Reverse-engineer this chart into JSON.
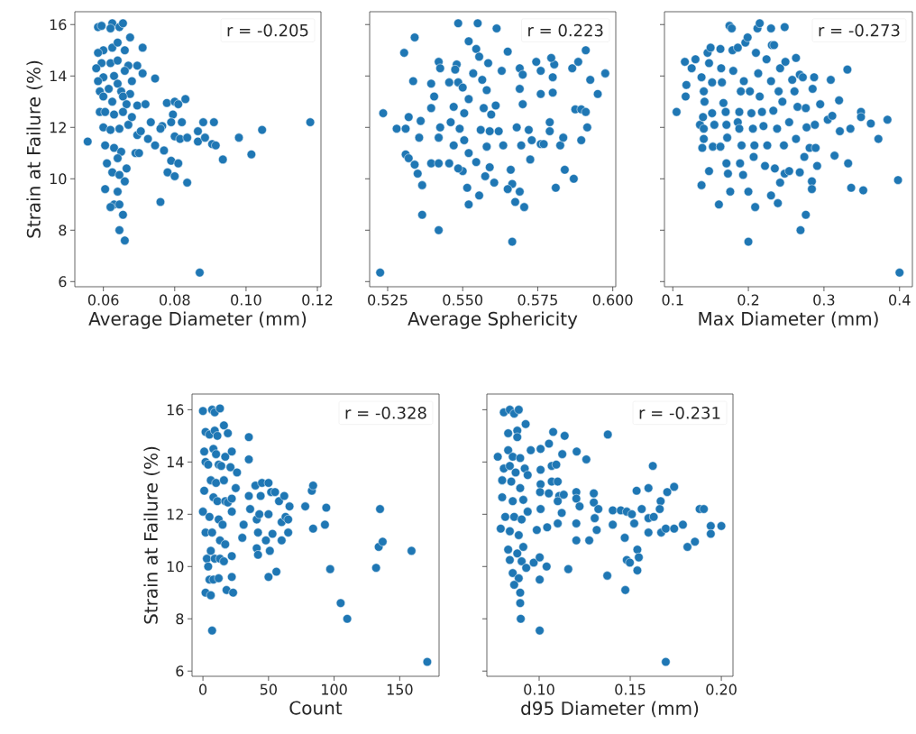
{
  "chart_data": [
    {
      "type": "scatter",
      "xlabel": "Average Diameter (mm)",
      "ylabel": "Strain at Failure (%)",
      "color": "#1f77b4",
      "xlim": [
        0.052,
        0.121
      ],
      "ylim": [
        5.8,
        16.5
      ],
      "xticks": [
        0.06,
        0.08,
        {
          "value": 0.1,
          "label": "0.10"
        },
        0.12
      ],
      "yticks": [
        6,
        8,
        10,
        12,
        14,
        16
      ],
      "annotations": [
        "r = -0.205"
      ],
      "x": [
        0.0556,
        0.0585,
        0.0595,
        0.0625,
        0.0645,
        0.0655,
        0.062,
        0.0675,
        0.071,
        0.06,
        0.0625,
        0.064,
        0.066,
        0.0585,
        0.0595,
        0.062,
        0.064,
        0.067,
        0.0695,
        0.071,
        0.058,
        0.06,
        0.063,
        0.066,
        0.068,
        0.0745,
        0.0585,
        0.059,
        0.0615,
        0.064,
        0.065,
        0.0675,
        0.06,
        0.0625,
        0.0655,
        0.0665,
        0.0695,
        0.0718,
        0.059,
        0.0605,
        0.063,
        0.0655,
        0.068,
        0.0778,
        0.08,
        0.083,
        0.081,
        0.0795,
        0.0733,
        0.0765,
        0.079,
        0.082,
        0.088,
        0.091,
        0.118,
        0.06,
        0.062,
        0.0645,
        0.067,
        0.0695,
        0.0705,
        0.076,
        0.08,
        0.0815,
        0.0835,
        0.0865,
        0.0865,
        0.0885,
        0.0905,
        0.0915,
        0.098,
        0.1045,
        0.0725,
        0.0745,
        0.077,
        0.0605,
        0.063,
        0.065,
        0.069,
        0.07,
        0.1015,
        0.0935,
        0.064,
        0.061,
        0.0665,
        0.079,
        0.081,
        0.078,
        0.08,
        0.0625,
        0.0645,
        0.066,
        0.0835,
        0.0605,
        0.064,
        0.063,
        0.0645,
        0.062,
        0.076,
        0.0655,
        0.0645,
        0.066,
        0.087
      ],
      "values": [
        11.45,
        15.9,
        15.95,
        16.05,
        15.9,
        16.05,
        15.85,
        15.5,
        15.1,
        15.0,
        15.1,
        15.3,
        15.0,
        14.9,
        14.5,
        14.5,
        14.6,
        14.4,
        14.4,
        14.1,
        14.3,
        13.95,
        14.0,
        14.2,
        13.8,
        13.9,
        13.8,
        13.4,
        13.5,
        13.7,
        13.4,
        13.3,
        13.2,
        13.0,
        13.2,
        12.9,
        12.85,
        12.9,
        12.6,
        12.6,
        12.5,
        12.6,
        12.4,
        12.95,
        13.0,
        13.1,
        12.9,
        12.5,
        12.2,
        12.05,
        12.2,
        12.2,
        12.2,
        12.2,
        12.2,
        12.0,
        11.9,
        11.95,
        12.1,
        11.7,
        11.85,
        11.95,
        11.65,
        11.55,
        11.6,
        11.85,
        11.45,
        11.6,
        11.35,
        11.3,
        11.6,
        11.9,
        11.55,
        11.3,
        11.1,
        11.3,
        11.2,
        11.05,
        11.0,
        11.0,
        10.95,
        10.75,
        10.8,
        10.6,
        10.4,
        10.7,
        10.6,
        10.25,
        10.1,
        10.25,
        10.15,
        9.9,
        9.85,
        9.6,
        9.5,
        9.0,
        9.0,
        8.9,
        9.1,
        8.6,
        8.0,
        7.6,
        6.35
      ]
    },
    {
      "type": "scatter",
      "xlabel": "Average Sphericity",
      "color": "#1f77b4",
      "xlim": [
        0.519,
        0.601
      ],
      "ylim": [
        5.8,
        16.5
      ],
      "xticks": [
        0.525,
        {
          "value": 0.55,
          "label": "0.550"
        },
        0.575,
        {
          "value": 0.6,
          "label": "0.600"
        }
      ],
      "yticks": [
        6,
        8,
        10,
        12,
        14,
        16
      ],
      "tick_labels": "x",
      "annotations": [
        "r = 0.223"
      ],
      "x": [
        0.5225,
        0.5235,
        0.528,
        0.5305,
        0.534,
        0.5335,
        0.532,
        0.531,
        0.531,
        0.532,
        0.534,
        0.535,
        0.5365,
        0.5365,
        0.542,
        0.5355,
        0.536,
        0.5395,
        0.542,
        0.5425,
        0.5405,
        0.5395,
        0.5425,
        0.542,
        0.5395,
        0.542,
        0.5455,
        0.547,
        0.546,
        0.547,
        0.5485,
        0.5455,
        0.548,
        0.5475,
        0.5485,
        0.555,
        0.552,
        0.5545,
        0.5555,
        0.5535,
        0.55,
        0.552,
        0.5505,
        0.549,
        0.5505,
        0.552,
        0.55,
        0.5485,
        0.5515,
        0.552,
        0.5555,
        0.5545,
        0.556,
        0.557,
        0.5565,
        0.5585,
        0.558,
        0.5595,
        0.559,
        0.558,
        0.559,
        0.5575,
        0.5605,
        0.561,
        0.563,
        0.565,
        0.5613,
        0.562,
        0.5635,
        0.566,
        0.5665,
        0.565,
        0.569,
        0.5675,
        0.5705,
        0.5665,
        0.568,
        0.5695,
        0.57,
        0.569,
        0.569,
        0.57,
        0.572,
        0.573,
        0.5725,
        0.576,
        0.5745,
        0.576,
        0.576,
        0.577,
        0.579,
        0.579,
        0.58,
        0.58,
        0.5805,
        0.5795,
        0.581,
        0.5825,
        0.5835,
        0.584,
        0.587,
        0.5865,
        0.5885,
        0.5875,
        0.5895,
        0.591,
        0.5895,
        0.5915,
        0.5925,
        0.595,
        0.5975,
        0.591
      ],
      "values": [
        6.35,
        12.55,
        11.95,
        14.9,
        15.5,
        13.8,
        12.4,
        11.95,
        10.95,
        10.8,
        10.55,
        10.2,
        9.75,
        8.6,
        8.0,
        11.6,
        12.25,
        13.7,
        14.55,
        14.3,
        13.2,
        12.75,
        12.0,
        11.6,
        10.6,
        10.6,
        10.6,
        11.3,
        12.2,
        12.8,
        13.75,
        13.75,
        14.45,
        14.25,
        16.05,
        16.05,
        15.35,
        15.05,
        14.75,
        14.1,
        13.55,
        13.1,
        12.55,
        11.95,
        11.5,
        11.0,
        10.3,
        10.4,
        9.65,
        9.0,
        9.35,
        10.65,
        11.9,
        12.75,
        13.85,
        14.5,
        13.45,
        12.5,
        11.85,
        11.25,
        10.45,
        10.1,
        9.85,
        12.85,
        14.2,
        14.95,
        15.85,
        11.85,
        11.3,
        10.35,
        9.8,
        9.6,
        9.5,
        9.1,
        8.9,
        7.55,
        12.0,
        11.3,
        12.9,
        13.5,
        14.3,
        14.05,
        11.9,
        11.5,
        10.75,
        13.3,
        14.55,
        14.2,
        11.35,
        11.35,
        11.85,
        12.2,
        13.35,
        13.95,
        14.45,
        14.7,
        9.65,
        11.3,
        11.6,
        10.35,
        10.0,
        14.3,
        14.55,
        12.7,
        12.7,
        12.6,
        11.5,
        12.0,
        13.85,
        13.3,
        14.1,
        15.0
      ]
    },
    {
      "type": "scatter",
      "xlabel": "Max Diameter (mm)",
      "color": "#1f77b4",
      "xlim": [
        0.089,
        0.417
      ],
      "ylim": [
        5.8,
        16.5
      ],
      "xticks": [
        0.1,
        0.2,
        0.3,
        0.4
      ],
      "yticks": [
        6,
        8,
        10,
        12,
        14,
        16
      ],
      "tick_labels": "x",
      "annotations": [
        "r = -0.273"
      ],
      "x": [
        0.105,
        0.117,
        0.118,
        0.116,
        0.125,
        0.13,
        0.136,
        0.138,
        0.141,
        0.142,
        0.14,
        0.141,
        0.141,
        0.139,
        0.138,
        0.148,
        0.146,
        0.15,
        0.148,
        0.152,
        0.152,
        0.155,
        0.153,
        0.161,
        0.163,
        0.163,
        0.164,
        0.165,
        0.167,
        0.17,
        0.171,
        0.171,
        0.172,
        0.173,
        0.176,
        0.175,
        0.178,
        0.179,
        0.18,
        0.186,
        0.19,
        0.188,
        0.186,
        0.188,
        0.191,
        0.189,
        0.193,
        0.194,
        0.196,
        0.199,
        0.2,
        0.2,
        0.202,
        0.204,
        0.206,
        0.208,
        0.207,
        0.21,
        0.212,
        0.215,
        0.209,
        0.213,
        0.215,
        0.218,
        0.22,
        0.222,
        0.224,
        0.225,
        0.23,
        0.23,
        0.231,
        0.23,
        0.234,
        0.233,
        0.235,
        0.239,
        0.238,
        0.24,
        0.242,
        0.245,
        0.248,
        0.249,
        0.247,
        0.248,
        0.242,
        0.254,
        0.254,
        0.258,
        0.263,
        0.261,
        0.265,
        0.263,
        0.268,
        0.268,
        0.272,
        0.269,
        0.276,
        0.274,
        0.277,
        0.276,
        0.281,
        0.284,
        0.284,
        0.285,
        0.287,
        0.288,
        0.289,
        0.291,
        0.295,
        0.305,
        0.309,
        0.311,
        0.314,
        0.32,
        0.321,
        0.331,
        0.332,
        0.335,
        0.336,
        0.349,
        0.349,
        0.352,
        0.362,
        0.372,
        0.384,
        0.398,
        0.4
      ],
      "values": [
        12.6,
        13.2,
        13.65,
        14.55,
        14.3,
        14.65,
        12.1,
        13.95,
        13.4,
        13.0,
        12.4,
        11.95,
        11.55,
        11.2,
        9.75,
        10.3,
        14.9,
        15.1,
        14.5,
        13.75,
        12.55,
        12.1,
        11.25,
        9.0,
        11.25,
        15.05,
        14.3,
        13.75,
        12.95,
        12.6,
        12.1,
        10.6,
        11.6,
        10.2,
        9.5,
        15.95,
        15.85,
        15.0,
        14.2,
        15.1,
        13.4,
        12.6,
        12.2,
        11.95,
        11.3,
        10.6,
        10.15,
        13.8,
        15.3,
        15.5,
        9.5,
        7.55,
        13.4,
        12.55,
        11.95,
        11.3,
        10.85,
        14.9,
        15.85,
        16.05,
        8.9,
        14.1,
        13.2,
        12.6,
        12.05,
        10.5,
        14.65,
        11.3,
        9.35,
        13.8,
        15.2,
        15.85,
        15.2,
        12.65,
        10.4,
        9.05,
        11.95,
        13.4,
        14.3,
        13.0,
        15.9,
        14.55,
        11.3,
        10.2,
        9.85,
        10.3,
        12.2,
        13.85,
        14.7,
        13.4,
        12.8,
        11.55,
        10.25,
        14.05,
        13.95,
        8.0,
        8.6,
        10.85,
        12.0,
        12.75,
        11.2,
        9.9,
        9.6,
        13.5,
        13.95,
        12.1,
        11.2,
        10.5,
        12.9,
        12.3,
        13.85,
        12.45,
        10.9,
        13.05,
        11.85,
        14.25,
        10.6,
        11.95,
        9.65,
        12.6,
        12.4,
        9.55,
        12.15,
        11.55,
        12.3,
        9.95,
        6.35
      ]
    },
    {
      "type": "scatter",
      "xlabel": "Count",
      "ylabel": "Strain at Failure (%)",
      "color": "#1f77b4",
      "xlim": [
        -8.3,
        180
      ],
      "ylim": [
        5.8,
        16.6
      ],
      "xticks": [
        0,
        50,
        100,
        150
      ],
      "yticks": [
        6,
        8,
        10,
        12,
        14,
        16
      ],
      "annotations": [
        "r = -0.328"
      ],
      "x": [
        0,
        2,
        1,
        2,
        1,
        0,
        2,
        3,
        2,
        7,
        6,
        5,
        8,
        4,
        6,
        9,
        7,
        5,
        8,
        6,
        4,
        8,
        5,
        9,
        7,
        9,
        13,
        11,
        10,
        12,
        10,
        11,
        12,
        13,
        13,
        12,
        16,
        17,
        15,
        17,
        16,
        14,
        17,
        16,
        19,
        19,
        18,
        23,
        22,
        22,
        22,
        22,
        21,
        22,
        26,
        25,
        31,
        30,
        35,
        35,
        35,
        36,
        40,
        41,
        42,
        41,
        42,
        43,
        45,
        44,
        48,
        50,
        52,
        50,
        53,
        51,
        50,
        55,
        56,
        58,
        60,
        62,
        60,
        63,
        65,
        66,
        65,
        78,
        83,
        84,
        84,
        94,
        93,
        97,
        105,
        110,
        132,
        135,
        134,
        137,
        159,
        171
      ],
      "values": [
        15.95,
        15.15,
        14.4,
        14.0,
        12.9,
        12.1,
        11.3,
        10.3,
        9.0,
        7.55,
        8.9,
        9.5,
        9.5,
        10.0,
        10.6,
        10.3,
        11.3,
        11.9,
        12.65,
        13.3,
        13.9,
        14.5,
        15.05,
        15.2,
        16.0,
        15.9,
        16.05,
        15.0,
        14.3,
        13.9,
        13.2,
        12.5,
        11.8,
        11.0,
        10.3,
        9.55,
        10.2,
        10.85,
        11.6,
        12.5,
        13.3,
        13.85,
        14.2,
        15.4,
        15.1,
        12.45,
        9.1,
        9.0,
        9.6,
        10.4,
        12.1,
        12.6,
        13.8,
        14.4,
        13.6,
        13.0,
        11.6,
        11.1,
        14.95,
        14.1,
        12.7,
        12.2,
        13.1,
        11.8,
        11.3,
        10.7,
        10.45,
        12.0,
        13.2,
        12.7,
        11.0,
        13.2,
        12.85,
        12.0,
        11.25,
        10.6,
        9.6,
        12.85,
        9.8,
        12.5,
        11.7,
        12.7,
        11.0,
        11.9,
        11.3,
        12.3,
        11.8,
        12.3,
        12.9,
        13.1,
        11.45,
        12.25,
        11.6,
        9.9,
        8.6,
        8.0,
        9.95,
        12.2,
        10.75,
        10.95,
        10.6,
        6.35
      ]
    },
    {
      "type": "scatter",
      "xlabel": "d95 Diameter (mm)",
      "color": "#1f77b4",
      "xlim": [
        0.0713,
        0.2064
      ],
      "ylim": [
        5.8,
        16.6
      ],
      "xticks": [
        {
          "value": 0.1,
          "label": "0.10"
        },
        0.15,
        {
          "value": 0.2,
          "label": "0.20"
        }
      ],
      "yticks": [
        6,
        8,
        10,
        12,
        14,
        16
      ],
      "tick_labels": "x",
      "annotations": [
        "r = -0.231"
      ],
      "x": [
        0.0773,
        0.0806,
        0.0839,
        0.0863,
        0.0888,
        0.0926,
        0.083,
        0.088,
        0.088,
        0.083,
        0.0855,
        0.0896,
        0.0806,
        0.0839,
        0.0871,
        0.0921,
        0.0937,
        0.0797,
        0.0847,
        0.0896,
        0.0797,
        0.0855,
        0.0913,
        0.0937,
        0.0814,
        0.0863,
        0.0904,
        0.0789,
        0.0839,
        0.0888,
        0.083,
        0.088,
        0.0913,
        0.0839,
        0.0904,
        0.0855,
        0.0888,
        0.0863,
        0.0896,
        0.0896,
        0.0899,
        0.1003,
        0.0929,
        0.097,
        0.1003,
        0.1003,
        0.1041,
        0.0954,
        0.1008,
        0.1008,
        0.1054,
        0.1077,
        0.114,
        0.1069,
        0.1094,
        0.1127,
        0.1069,
        0.1102,
        0.1008,
        0.1005,
        0.1053,
        0.111,
        0.1135,
        0.1008,
        0.1102,
        0.1124,
        0.0987,
        0.1044,
        0.1102,
        0.116,
        0.1206,
        0.1259,
        0.1204,
        0.1204,
        0.1222,
        0.1204,
        0.1204,
        0.1275,
        0.13,
        0.13,
        0.1325,
        0.1305,
        0.1316,
        0.1377,
        0.1374,
        0.1404,
        0.1404,
        0.1448,
        0.1481,
        0.1509,
        0.1522,
        0.147,
        0.1481,
        0.1498,
        0.1539,
        0.1547,
        0.1539,
        0.1473,
        0.1535,
        0.1563,
        0.16,
        0.16,
        0.16,
        0.1624,
        0.1629,
        0.1667,
        0.1662,
        0.167,
        0.1695,
        0.1703,
        0.1741,
        0.1741,
        0.1789,
        0.1814,
        0.1855,
        0.1881,
        0.1904,
        0.1942,
        0.1942,
        0.2,
        0.1695
      ],
      "values": [
        14.2,
        15.9,
        16.0,
        15.85,
        16.0,
        15.45,
        15.1,
        15.2,
        14.95,
        14.45,
        14.2,
        14.15,
        13.75,
        13.85,
        13.6,
        13.75,
        13.5,
        13.3,
        13.25,
        13.0,
        12.65,
        12.5,
        12.55,
        12.1,
        11.9,
        11.9,
        11.8,
        11.45,
        11.35,
        11.2,
        10.65,
        10.5,
        10.75,
        10.25,
        10.2,
        9.75,
        9.55,
        9.3,
        9.0,
        8.6,
        8.0,
        7.55,
        9.95,
        10.15,
        10.35,
        9.5,
        10.0,
        14.45,
        14.5,
        13.7,
        14.7,
        15.15,
        15.0,
        13.85,
        13.9,
        14.3,
        13.25,
        13.25,
        13.15,
        12.85,
        12.8,
        12.7,
        12.75,
        12.2,
        12.5,
        12.05,
        11.4,
        11.5,
        11.65,
        9.9,
        14.4,
        14.1,
        12.85,
        12.6,
        12.3,
        11.65,
        11.0,
        11.0,
        12.8,
        12.45,
        12.2,
        11.85,
        11.4,
        15.05,
        9.65,
        12.15,
        11.6,
        12.15,
        12.1,
        12.0,
        11.65,
        11.1,
        10.25,
        10.15,
        10.65,
        10.35,
        9.85,
        9.1,
        12.9,
        12.2,
        13.0,
        11.85,
        11.3,
        13.85,
        11.9,
        12.5,
        12.2,
        11.3,
        11.45,
        12.85,
        13.05,
        11.45,
        11.6,
        10.75,
        10.95,
        12.2,
        12.2,
        11.55,
        11.25,
        11.55,
        6.35
      ]
    }
  ]
}
